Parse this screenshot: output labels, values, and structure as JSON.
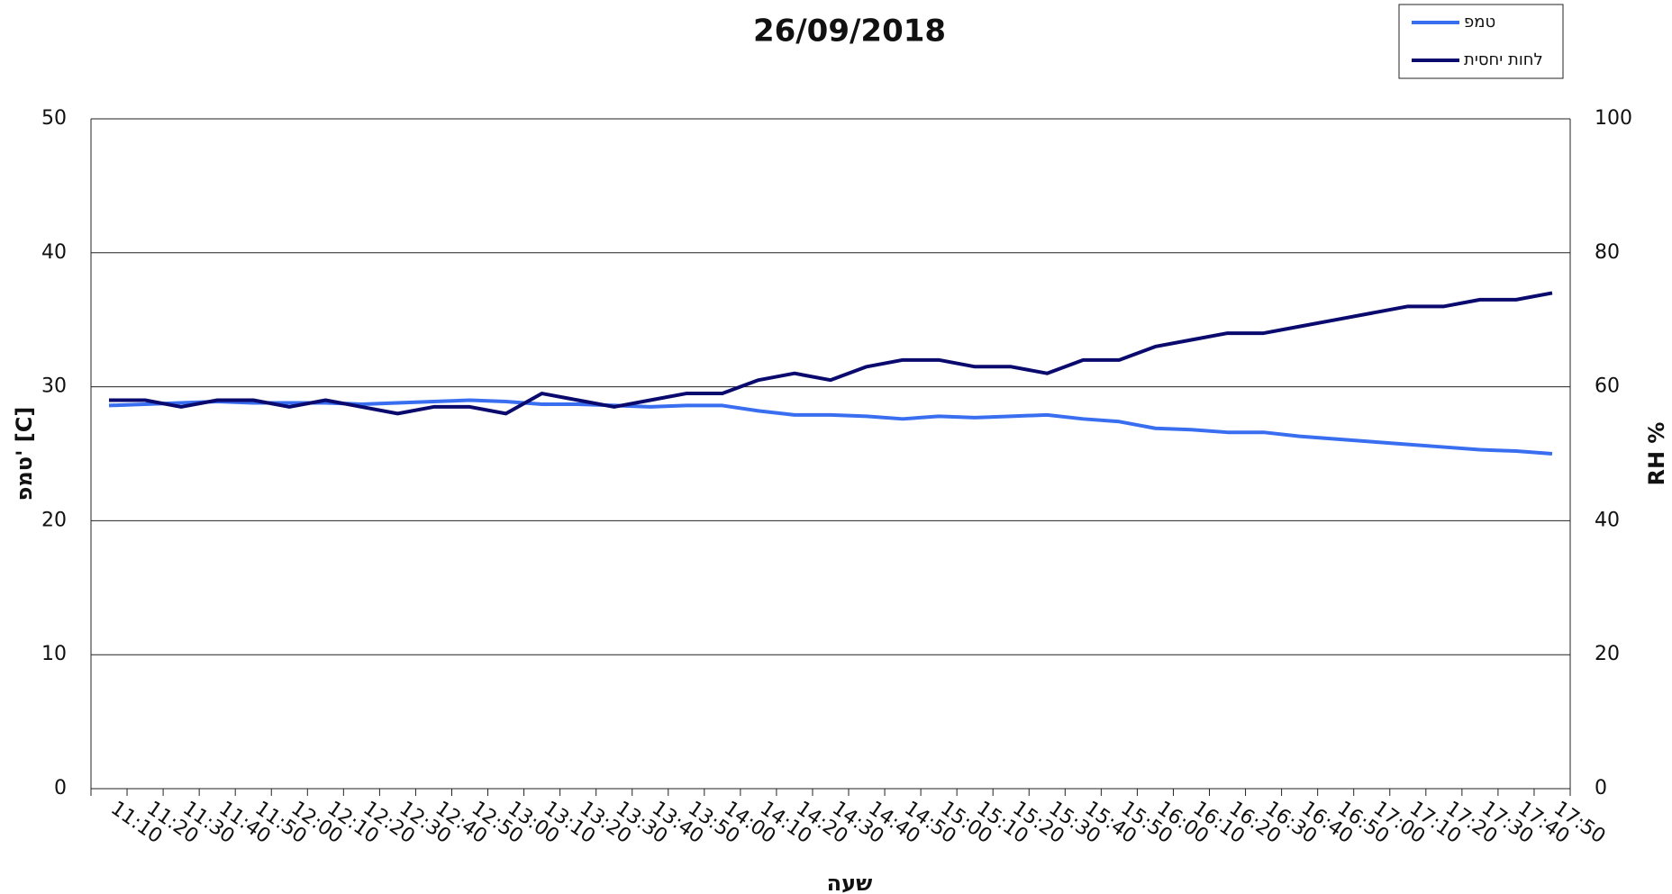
{
  "chart_data": {
    "type": "line",
    "title": "26/09/2018",
    "x_label": "שעה",
    "y_label": "טמפ' [C]",
    "y2_label": "RH %",
    "categories": [
      "11:10",
      "11:20",
      "11:30",
      "11:40",
      "11:50",
      "12:00",
      "12:10",
      "12:20",
      "12:30",
      "12:40",
      "12:50",
      "13:00",
      "13:10",
      "13:20",
      "13:30",
      "13:40",
      "13:50",
      "14:00",
      "14:10",
      "14:20",
      "14:30",
      "14:40",
      "14:50",
      "15:00",
      "15:10",
      "15:20",
      "15:30",
      "15:40",
      "15:50",
      "16:00",
      "16:10",
      "16:20",
      "16:30",
      "16:40",
      "16:50",
      "17:00",
      "17:10",
      "17:20",
      "17:30",
      "17:40",
      "17:50"
    ],
    "series": [
      {
        "name": "טמפ",
        "color": "#3a6ef0",
        "values": [
          28.6,
          28.7,
          28.8,
          28.9,
          28.8,
          28.8,
          28.8,
          28.7,
          28.8,
          28.9,
          29.0,
          28.9,
          28.7,
          28.7,
          28.6,
          28.5,
          28.6,
          28.6,
          28.2,
          27.9,
          27.9,
          27.8,
          27.6,
          27.8,
          27.7,
          27.8,
          27.9,
          27.6,
          27.4,
          26.9,
          26.8,
          26.6,
          26.6,
          26.3,
          26.1,
          25.9,
          25.7,
          25.5,
          25.3,
          25.2,
          25.0
        ]
      },
      {
        "name": "לחות יחסית",
        "color": "#0a0a6e",
        "axis": "y2",
        "values": [
          58,
          58,
          57,
          58,
          58,
          57,
          58,
          57,
          56,
          57,
          57,
          56,
          59,
          58,
          57,
          58,
          59,
          59,
          61,
          62,
          61,
          63,
          64,
          64,
          63,
          63,
          62,
          64,
          64,
          66,
          67,
          68,
          68,
          69,
          70,
          71,
          72,
          72,
          73,
          73,
          74
        ]
      }
    ],
    "ylim": [
      0,
      50
    ],
    "yticks": [
      0,
      10,
      20,
      30,
      40,
      50
    ],
    "y2lim": [
      0,
      100
    ],
    "y2ticks": [
      0,
      20,
      40,
      60,
      80,
      100
    ],
    "grid": true,
    "legend": "top-right"
  }
}
